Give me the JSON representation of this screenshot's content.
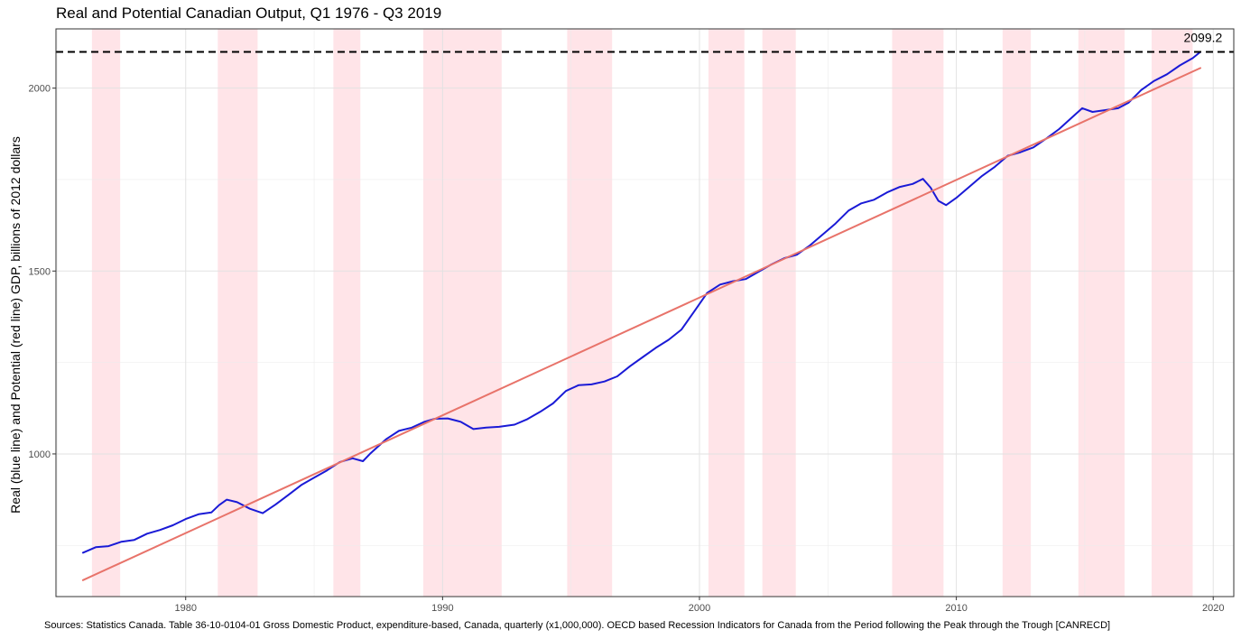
{
  "chart_data": {
    "type": "line",
    "title": "Real and Potential Canadian Output, Q1 1976 - Q3 2019",
    "ylabel": "Real (blue line) and Potential (red line) GDP, billions of 2012 dollars",
    "xlabel": "",
    "source": "Sources: Statistics Canada. Table 36-10-0104-01 Gross Domestic Product, expenditure-based, Canada, quarterly (x1,000,000). OECD based Recession Indicators for Canada from the Period following the Peak through the Trough [CANRECD]",
    "xlim": [
      1974.95,
      2020.8
    ],
    "ylim": [
      610,
      2162
    ],
    "x_ticks": [
      {
        "value": 1980,
        "label": "1980"
      },
      {
        "value": 1990,
        "label": "1990"
      },
      {
        "value": 2000,
        "label": "2000"
      },
      {
        "value": 2010,
        "label": "2010"
      },
      {
        "value": 2020,
        "label": "2020"
      }
    ],
    "y_ticks": [
      {
        "value": 1000,
        "label": "1000"
      },
      {
        "value": 1500,
        "label": "1500"
      },
      {
        "value": 2000,
        "label": "2000"
      }
    ],
    "grid": true,
    "recessions": [
      [
        1976.35,
        1977.45
      ],
      [
        1981.25,
        1982.8
      ],
      [
        1985.75,
        1986.8
      ],
      [
        1989.25,
        1992.3
      ],
      [
        1994.85,
        1996.6
      ],
      [
        2000.35,
        2001.75
      ],
      [
        2002.45,
        2003.75
      ],
      [
        2007.5,
        2009.5
      ],
      [
        2011.8,
        2012.9
      ],
      [
        2014.75,
        2016.55
      ],
      [
        2017.6,
        2019.2
      ]
    ],
    "peak_line": {
      "value": 2099.2,
      "label": "2099.2",
      "label_x": 2018.85
    },
    "series": [
      {
        "color": "#1a1ad6",
        "points": [
          [
            1976.0,
            730
          ],
          [
            1976.5,
            745
          ],
          [
            1977.0,
            748
          ],
          [
            1977.5,
            760
          ],
          [
            1978.0,
            765
          ],
          [
            1978.5,
            782
          ],
          [
            1979.0,
            792
          ],
          [
            1979.5,
            805
          ],
          [
            1980.0,
            822
          ],
          [
            1980.5,
            835
          ],
          [
            1981.0,
            840
          ],
          [
            1981.3,
            860
          ],
          [
            1981.6,
            875
          ],
          [
            1982.0,
            868
          ],
          [
            1982.5,
            850
          ],
          [
            1983.0,
            838
          ],
          [
            1983.5,
            862
          ],
          [
            1984.0,
            888
          ],
          [
            1984.5,
            915
          ],
          [
            1985.0,
            935
          ],
          [
            1985.5,
            955
          ],
          [
            1986.0,
            978
          ],
          [
            1986.5,
            988
          ],
          [
            1986.9,
            980
          ],
          [
            1987.2,
            1002
          ],
          [
            1987.8,
            1040
          ],
          [
            1988.3,
            1063
          ],
          [
            1988.8,
            1072
          ],
          [
            1989.3,
            1088
          ],
          [
            1989.7,
            1096
          ],
          [
            1990.2,
            1097
          ],
          [
            1990.7,
            1088
          ],
          [
            1991.2,
            1068
          ],
          [
            1991.7,
            1072
          ],
          [
            1992.2,
            1074
          ],
          [
            1992.8,
            1080
          ],
          [
            1993.3,
            1095
          ],
          [
            1993.8,
            1115
          ],
          [
            1994.3,
            1138
          ],
          [
            1994.8,
            1172
          ],
          [
            1995.3,
            1188
          ],
          [
            1995.8,
            1190
          ],
          [
            1996.3,
            1198
          ],
          [
            1996.8,
            1212
          ],
          [
            1997.3,
            1240
          ],
          [
            1997.8,
            1265
          ],
          [
            1998.3,
            1290
          ],
          [
            1998.8,
            1312
          ],
          [
            1999.3,
            1340
          ],
          [
            1999.8,
            1390
          ],
          [
            2000.3,
            1440
          ],
          [
            2000.8,
            1463
          ],
          [
            2001.3,
            1472
          ],
          [
            2001.8,
            1478
          ],
          [
            2002.3,
            1498
          ],
          [
            2002.8,
            1518
          ],
          [
            2003.3,
            1535
          ],
          [
            2003.8,
            1545
          ],
          [
            2004.3,
            1570
          ],
          [
            2004.8,
            1600
          ],
          [
            2005.3,
            1630
          ],
          [
            2005.8,
            1665
          ],
          [
            2006.3,
            1685
          ],
          [
            2006.8,
            1695
          ],
          [
            2007.3,
            1715
          ],
          [
            2007.8,
            1730
          ],
          [
            2008.3,
            1738
          ],
          [
            2008.7,
            1752
          ],
          [
            2009.0,
            1728
          ],
          [
            2009.3,
            1692
          ],
          [
            2009.6,
            1680
          ],
          [
            2010.0,
            1700
          ],
          [
            2010.5,
            1730
          ],
          [
            2011.0,
            1760
          ],
          [
            2011.5,
            1785
          ],
          [
            2012.0,
            1815
          ],
          [
            2012.5,
            1825
          ],
          [
            2013.0,
            1838
          ],
          [
            2013.5,
            1862
          ],
          [
            2014.0,
            1888
          ],
          [
            2014.5,
            1920
          ],
          [
            2014.9,
            1945
          ],
          [
            2015.3,
            1935
          ],
          [
            2015.8,
            1940
          ],
          [
            2016.3,
            1945
          ],
          [
            2016.7,
            1960
          ],
          [
            2017.2,
            1995
          ],
          [
            2017.7,
            2020
          ],
          [
            2018.2,
            2038
          ],
          [
            2018.7,
            2062
          ],
          [
            2019.2,
            2082
          ],
          [
            2019.5,
            2099.2
          ]
        ]
      },
      {
        "color": "#e8736a",
        "points": [
          [
            1976.0,
            655
          ],
          [
            2019.5,
            2055
          ]
        ]
      }
    ]
  }
}
